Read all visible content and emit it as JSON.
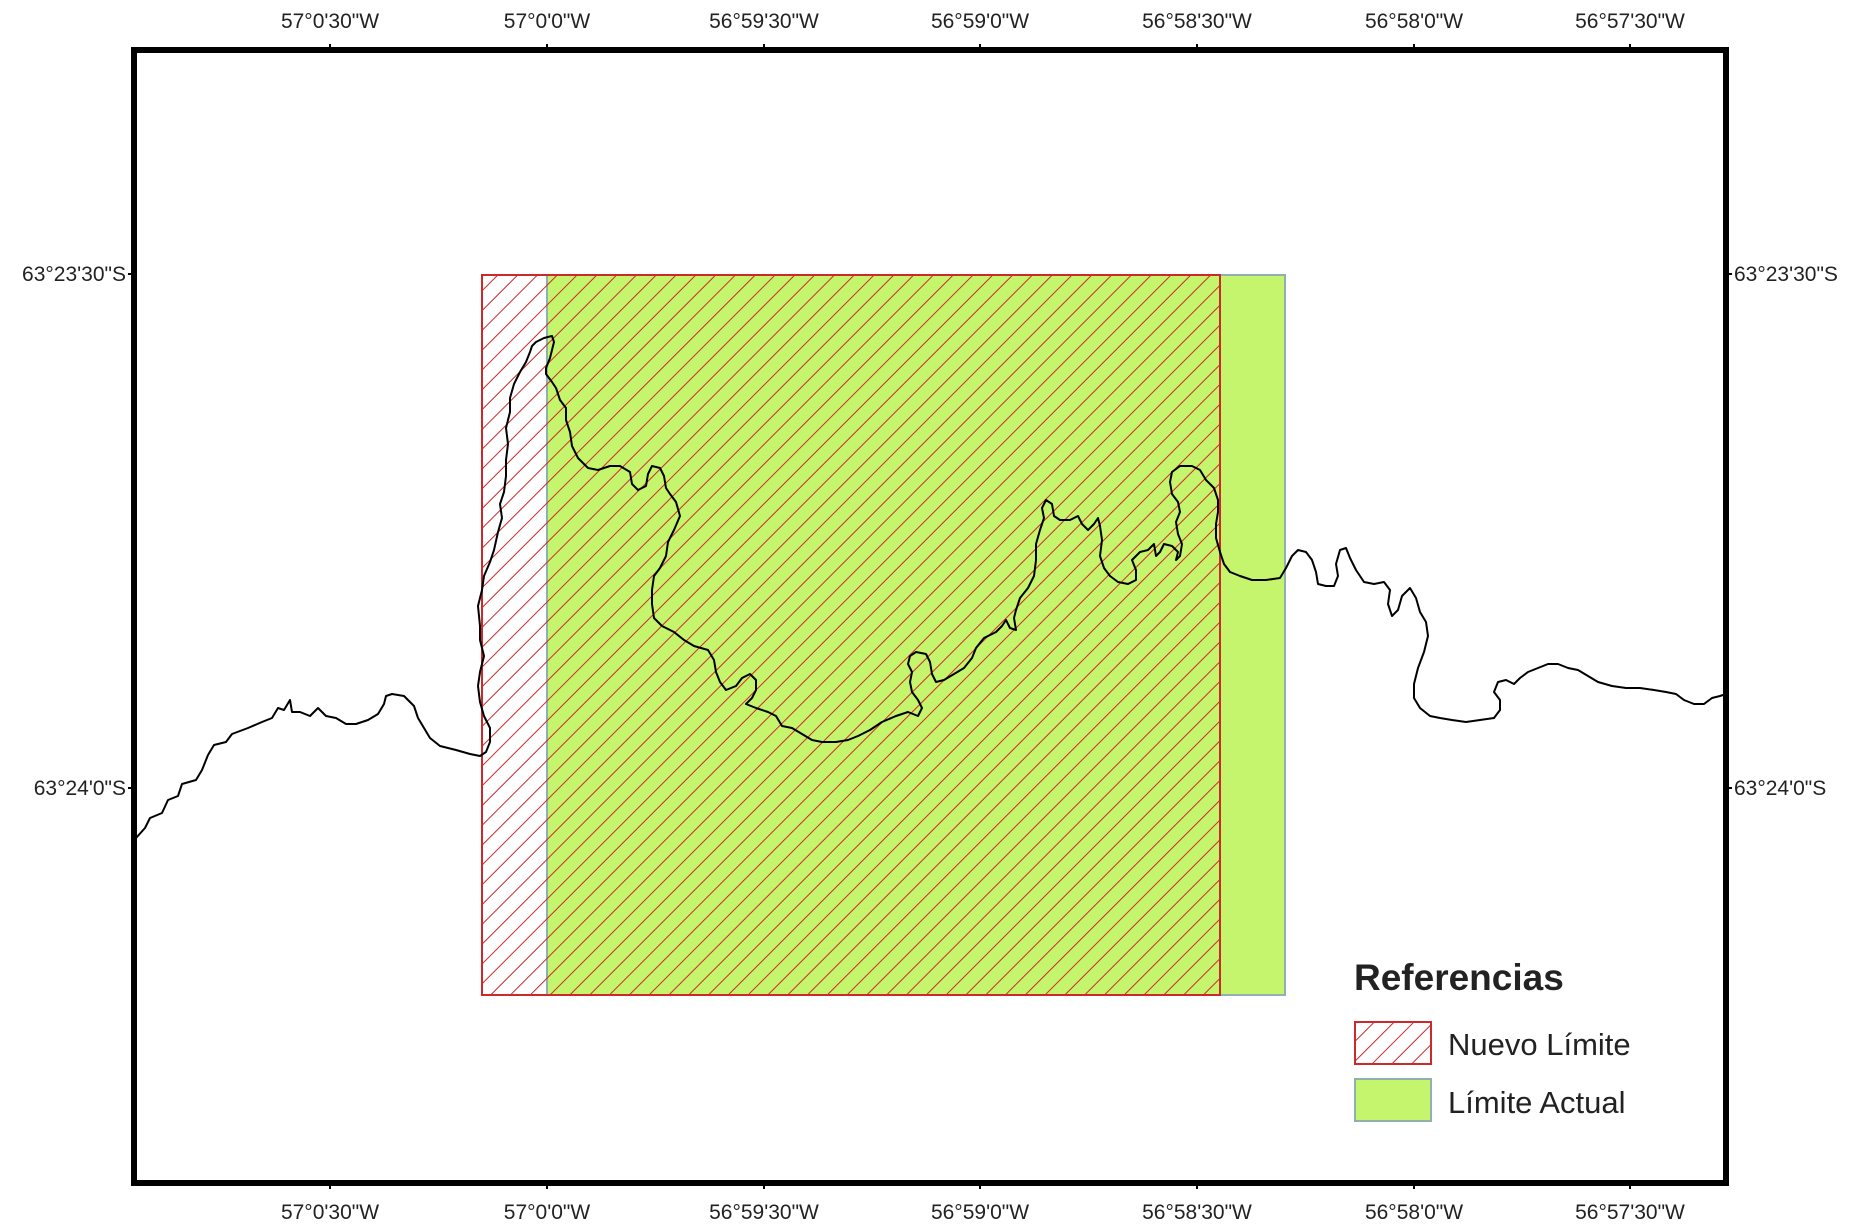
{
  "map": {
    "top_ticks": [
      "57°0'30\"W",
      "57°0'0\"W",
      "56°59'30\"W",
      "56°59'0\"W",
      "56°58'30\"W",
      "56°58'0\"W",
      "56°57'30\"W"
    ],
    "bottom_ticks": [
      "57°0'30\"W",
      "57°0'0\"W",
      "56°59'30\"W",
      "56°59'0\"W",
      "56°58'30\"W",
      "56°58'0\"W",
      "56°57'30\"W"
    ],
    "left_ticks": [
      "63°23'30\"S",
      "63°24'0\"S"
    ],
    "right_ticks": [
      "63°23'30\"S",
      "63°24'0\"S"
    ]
  },
  "layers": {
    "limite_actual": {
      "fill": "#c5f56c",
      "stroke": "#8fb0b0"
    },
    "nuevo_limite": {
      "stroke": "#cc2a2a"
    },
    "coastline": {
      "stroke": "#000000"
    }
  },
  "legend": {
    "title": "Referencias",
    "items": [
      {
        "label": "Nuevo Límite",
        "pattern": "hatch-red"
      },
      {
        "label": "Límite Actual",
        "pattern": "solid-green"
      }
    ]
  }
}
